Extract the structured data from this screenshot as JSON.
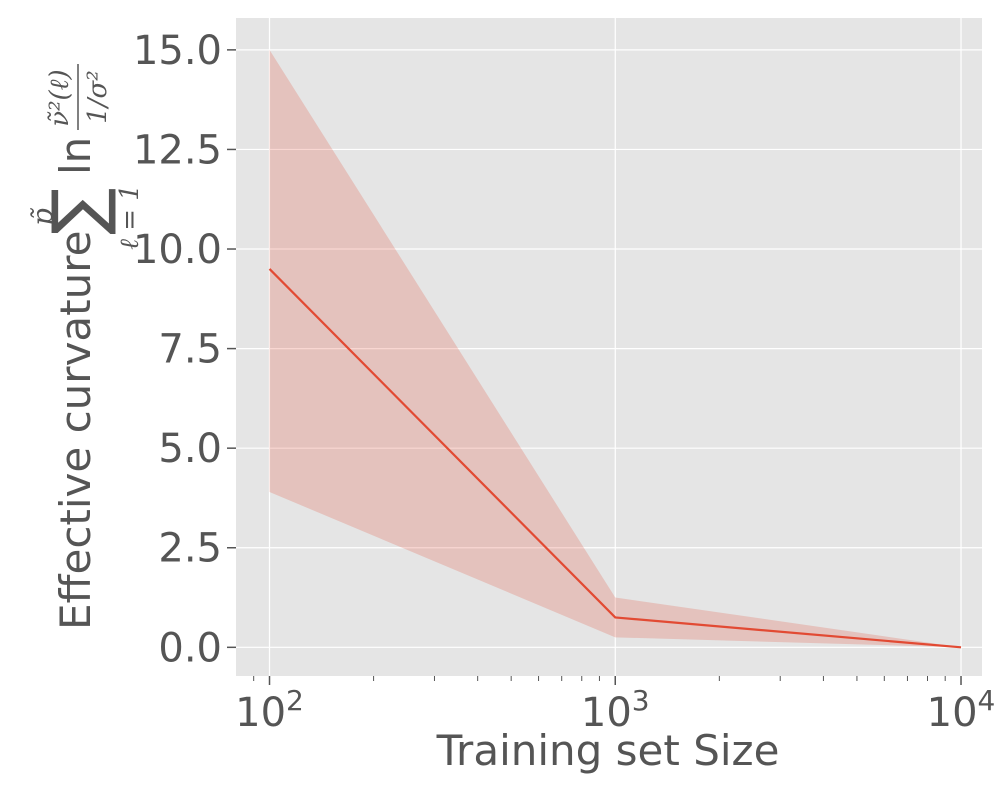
{
  "chart_data": {
    "type": "line",
    "xscale": "log",
    "x": [
      100,
      1000,
      10000
    ],
    "series": [
      {
        "values": [
          9.5,
          0.75,
          0.0
        ],
        "lower": [
          3.9,
          0.25,
          0.0
        ],
        "upper": [
          15.0,
          1.25,
          0.0
        ],
        "color": "#E24A33",
        "band_color": "#E24A33"
      }
    ],
    "xlabel": "Training set Size",
    "ylabel": "Effective curvature",
    "ylabel_formula": {
      "sum_symbol": "∑",
      "upper_limit": "p̃",
      "lower_limit": "ℓ = 1",
      "ln": "ln",
      "numerator": "ν̃²(ℓ)",
      "denominator": "1/σ²"
    },
    "xlim": [
      80,
      11500
    ],
    "ylim": [
      -0.72,
      15.8
    ],
    "yticks": [
      0.0,
      2.5,
      5.0,
      7.5,
      10.0,
      12.5,
      15.0
    ],
    "ytick_labels": [
      "0.0",
      "2.5",
      "5.0",
      "7.5",
      "10.0",
      "12.5",
      "15.0"
    ],
    "xticks": [
      100,
      1000,
      10000
    ],
    "xtick_base": "10",
    "xtick_exponents": [
      "2",
      "3",
      "4"
    ],
    "grid": true,
    "style": {
      "background": "#E5E5E5",
      "grid_color": "#FFFFFF",
      "text_color": "#555555"
    }
  }
}
